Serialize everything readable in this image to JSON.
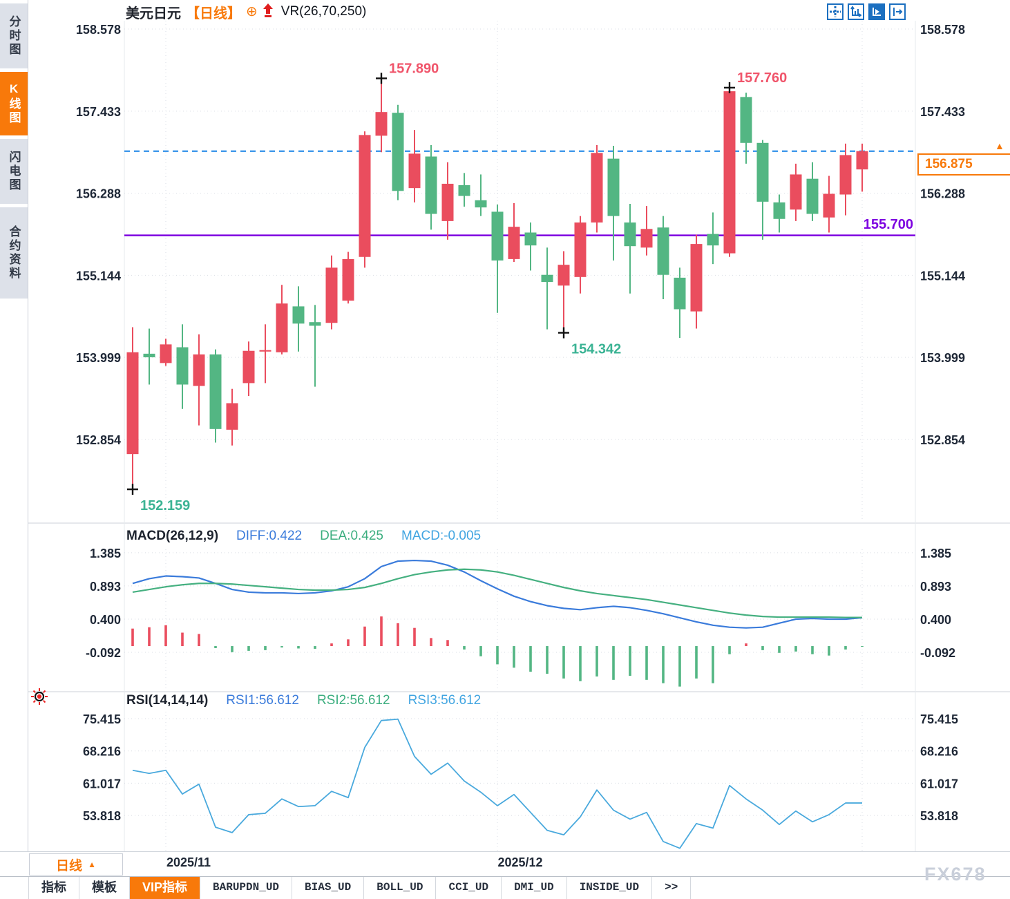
{
  "header": {
    "symbol": "美元日元",
    "period_tag": "【日线】",
    "plus_icon": "⊕",
    "indicator": "VR(26,70,250)"
  },
  "sidebar": {
    "tabs": [
      {
        "label": "分时图",
        "active": false
      },
      {
        "label": "K线图",
        "active": true
      },
      {
        "label": "闪电图",
        "active": false
      },
      {
        "label": "合约资料",
        "active": false
      }
    ]
  },
  "toolbar": {
    "icons": [
      "crosshair-move-icon",
      "axis-scale-icon",
      "axis-play-icon",
      "collapse-right-icon"
    ]
  },
  "colors": {
    "up": "#ea4d5e",
    "down": "#53b683",
    "diff_line": "#3a7bdb",
    "dea_line": "#45b080",
    "rsi_line": "#49a9dd",
    "current_line": "#1581e6",
    "support_line": "#7d00e0",
    "accent_orange": "#f8790a",
    "axis_text": "#1e2736",
    "grid": "#d9dde4",
    "ann_high": "#f0546a",
    "ann_low": "#3bb394"
  },
  "chart_data": {
    "type": "candlestick",
    "title": "美元日元 日线 (USD/JPY daily)",
    "y_ticks": [
      "158.578",
      "157.433",
      "156.288",
      "155.144",
      "153.999",
      "152.854"
    ],
    "x_axis": [
      {
        "label": "2025/11",
        "index": 2
      },
      {
        "label": "2025/12",
        "index": 22
      },
      {
        "label": "",
        "index": 44
      }
    ],
    "candles_ohlc": [
      [
        152.65,
        154.42,
        152.159,
        154.07
      ],
      [
        154.05,
        154.4,
        153.62,
        154.0
      ],
      [
        153.92,
        154.26,
        153.88,
        154.18
      ],
      [
        154.14,
        154.46,
        153.28,
        153.62
      ],
      [
        153.6,
        154.32,
        153.05,
        154.04
      ],
      [
        154.04,
        154.11,
        152.81,
        153.0
      ],
      [
        152.99,
        153.56,
        152.77,
        153.36
      ],
      [
        153.64,
        154.22,
        153.46,
        154.09
      ],
      [
        154.08,
        154.46,
        153.64,
        154.1
      ],
      [
        154.07,
        155.01,
        154.04,
        154.75
      ],
      [
        154.71,
        154.99,
        154.08,
        154.47
      ],
      [
        154.49,
        154.73,
        153.59,
        154.44
      ],
      [
        154.48,
        155.42,
        154.39,
        155.25
      ],
      [
        154.79,
        155.47,
        154.75,
        155.37
      ],
      [
        155.4,
        157.15,
        155.25,
        157.1
      ],
      [
        157.09,
        157.89,
        156.86,
        157.42
      ],
      [
        157.41,
        157.52,
        156.19,
        156.32
      ],
      [
        156.36,
        157.17,
        156.16,
        156.84
      ],
      [
        156.8,
        156.96,
        155.78,
        156.0
      ],
      [
        155.9,
        156.72,
        155.64,
        156.42
      ],
      [
        156.4,
        156.57,
        156.1,
        156.25
      ],
      [
        156.19,
        156.55,
        155.97,
        156.09
      ],
      [
        156.03,
        156.13,
        154.62,
        155.35
      ],
      [
        155.37,
        156.15,
        155.33,
        155.82
      ],
      [
        155.74,
        155.88,
        155.21,
        155.56
      ],
      [
        155.15,
        155.53,
        154.39,
        155.05
      ],
      [
        155.0,
        155.48,
        154.342,
        155.29
      ],
      [
        155.12,
        155.97,
        154.89,
        155.88
      ],
      [
        155.88,
        156.96,
        155.74,
        156.85
      ],
      [
        156.77,
        156.95,
        155.35,
        155.97
      ],
      [
        155.88,
        156.14,
        154.89,
        155.55
      ],
      [
        155.53,
        156.11,
        155.42,
        155.79
      ],
      [
        155.81,
        155.97,
        154.81,
        155.15
      ],
      [
        155.11,
        155.25,
        154.27,
        154.67
      ],
      [
        154.64,
        155.71,
        154.4,
        155.58
      ],
      [
        155.72,
        156.02,
        155.3,
        155.56
      ],
      [
        155.45,
        157.76,
        155.4,
        157.71
      ],
      [
        157.63,
        157.69,
        156.7,
        156.99
      ],
      [
        156.99,
        157.03,
        155.64,
        156.17
      ],
      [
        156.16,
        156.27,
        155.74,
        155.93
      ],
      [
        156.06,
        156.7,
        155.9,
        156.55
      ],
      [
        156.49,
        156.72,
        155.9,
        156.0
      ],
      [
        155.95,
        156.53,
        155.74,
        156.28
      ],
      [
        156.27,
        156.98,
        155.98,
        156.82
      ],
      [
        156.62,
        156.98,
        156.31,
        156.875
      ]
    ],
    "annotations": [
      {
        "label": "157.890",
        "type": "high",
        "index": 15
      },
      {
        "label": "157.760",
        "type": "high",
        "index": 36
      },
      {
        "label": "154.342",
        "type": "low",
        "index": 26
      },
      {
        "label": "152.159",
        "type": "low",
        "index": 0
      }
    ],
    "levels": {
      "current_price": {
        "label": "156.875",
        "value": 156.875,
        "style": "dashed"
      },
      "support": {
        "label": "155.700",
        "value": 155.7,
        "style": "solid"
      }
    },
    "macd": {
      "title": "MACD(26,12,9)",
      "legend": {
        "diff": "DIFF:0.422",
        "dea": "DEA:0.425",
        "macd": "MACD:-0.005"
      },
      "y_ticks": [
        "1.385",
        "0.893",
        "0.400",
        "-0.092"
      ],
      "diff": [
        0.93,
        1.0,
        1.04,
        1.03,
        1.01,
        0.93,
        0.84,
        0.8,
        0.79,
        0.79,
        0.78,
        0.79,
        0.82,
        0.88,
        1.0,
        1.18,
        1.26,
        1.27,
        1.26,
        1.2,
        1.1,
        0.97,
        0.85,
        0.74,
        0.66,
        0.6,
        0.56,
        0.54,
        0.57,
        0.59,
        0.57,
        0.53,
        0.48,
        0.42,
        0.36,
        0.31,
        0.28,
        0.27,
        0.28,
        0.34,
        0.4,
        0.41,
        0.4,
        0.4,
        0.422
      ],
      "dea": [
        0.8,
        0.84,
        0.88,
        0.91,
        0.93,
        0.93,
        0.92,
        0.9,
        0.88,
        0.86,
        0.84,
        0.83,
        0.83,
        0.84,
        0.87,
        0.93,
        1.0,
        1.06,
        1.1,
        1.13,
        1.14,
        1.13,
        1.1,
        1.05,
        0.99,
        0.93,
        0.87,
        0.82,
        0.78,
        0.75,
        0.72,
        0.69,
        0.65,
        0.61,
        0.57,
        0.53,
        0.49,
        0.46,
        0.44,
        0.43,
        0.43,
        0.43,
        0.43,
        0.425,
        0.425
      ],
      "hist": [
        0.26,
        0.28,
        0.31,
        0.2,
        0.18,
        -0.03,
        -0.09,
        -0.07,
        -0.06,
        -0.02,
        -0.035,
        -0.04,
        0.04,
        0.1,
        0.29,
        0.44,
        0.34,
        0.27,
        0.12,
        0.09,
        -0.05,
        -0.15,
        -0.27,
        -0.32,
        -0.38,
        -0.41,
        -0.48,
        -0.52,
        -0.45,
        -0.5,
        -0.44,
        -0.5,
        -0.55,
        -0.6,
        -0.48,
        -0.55,
        -0.12,
        0.04,
        -0.06,
        -0.1,
        -0.08,
        -0.12,
        -0.14,
        -0.05,
        -0.01
      ]
    },
    "rsi": {
      "title": "RSI(14,14,14)",
      "legend": {
        "rsi1": "RSI1:56.612",
        "rsi2": "RSI2:56.612",
        "rsi3": "RSI3:56.612"
      },
      "y_ticks": [
        "75.415",
        "68.216",
        "61.017",
        "53.818"
      ],
      "values": [
        63.9,
        63.2,
        63.9,
        58.6,
        60.8,
        51.2,
        50.0,
        54.0,
        54.3,
        57.5,
        55.8,
        56.0,
        59.2,
        57.8,
        69.0,
        75.0,
        75.3,
        67.0,
        63.0,
        65.5,
        61.5,
        59.0,
        56.0,
        58.5,
        54.5,
        50.5,
        49.5,
        53.5,
        59.5,
        55.0,
        53.0,
        54.5,
        48.0,
        46.5,
        52.0,
        51.0,
        60.5,
        57.5,
        55.0,
        51.8,
        54.8,
        52.4,
        54.0,
        56.6,
        56.6
      ]
    }
  },
  "bottom": {
    "period_button": {
      "label": "日线",
      "arrow": "▲"
    },
    "tabs": [
      {
        "label": "指标",
        "active": false,
        "mono": false
      },
      {
        "label": "模板",
        "active": false,
        "mono": false
      },
      {
        "label": "VIP指标",
        "active": true,
        "mono": false
      },
      {
        "label": "BARUPDN_UD",
        "active": false,
        "mono": true
      },
      {
        "label": "BIAS_UD",
        "active": false,
        "mono": true
      },
      {
        "label": "BOLL_UD",
        "active": false,
        "mono": true
      },
      {
        "label": "CCI_UD",
        "active": false,
        "mono": true
      },
      {
        "label": "DMI_UD",
        "active": false,
        "mono": true
      },
      {
        "label": "INSIDE_UD",
        "active": false,
        "mono": true
      },
      {
        "label": ">>",
        "active": false,
        "mono": true
      }
    ]
  },
  "watermark": "FX678"
}
